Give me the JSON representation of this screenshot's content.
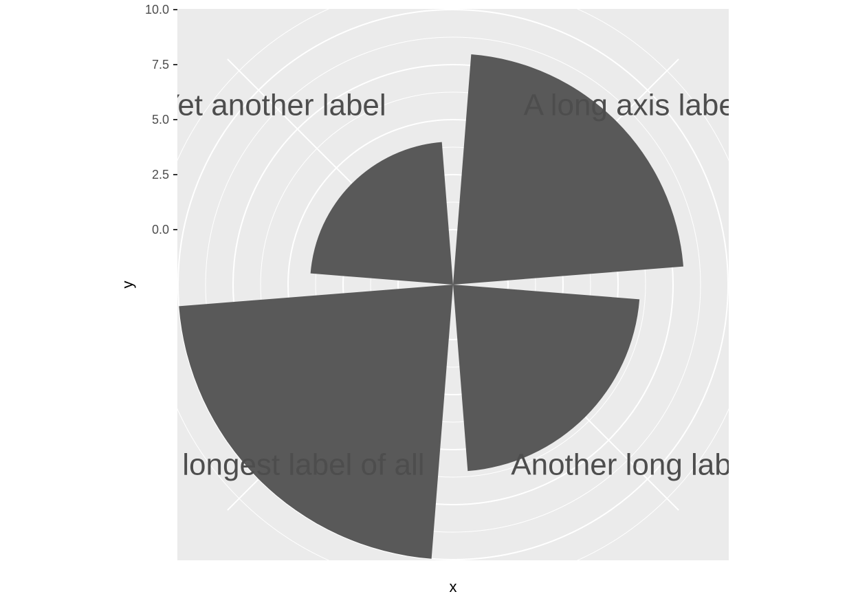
{
  "chart_data": {
    "type": "bar",
    "coord": "polar",
    "categories": [
      "A long axis label",
      "Another long label",
      "The longest label of all",
      "Yet another label"
    ],
    "values": [
      8,
      6,
      10,
      4
    ],
    "xlabel": "x",
    "ylabel": "y",
    "yticks": [
      "0.0",
      "2.5",
      "5.0",
      "7.5",
      "10.0"
    ],
    "ytick_values": [
      0,
      2.5,
      5,
      7.5,
      10
    ],
    "ylim": [
      -2.5,
      12
    ],
    "grid": true,
    "legend": "none",
    "colors": {
      "panel": "#ebebeb",
      "grid": "#ffffff",
      "bar": "#595959",
      "text": "#4d4d4d"
    }
  }
}
